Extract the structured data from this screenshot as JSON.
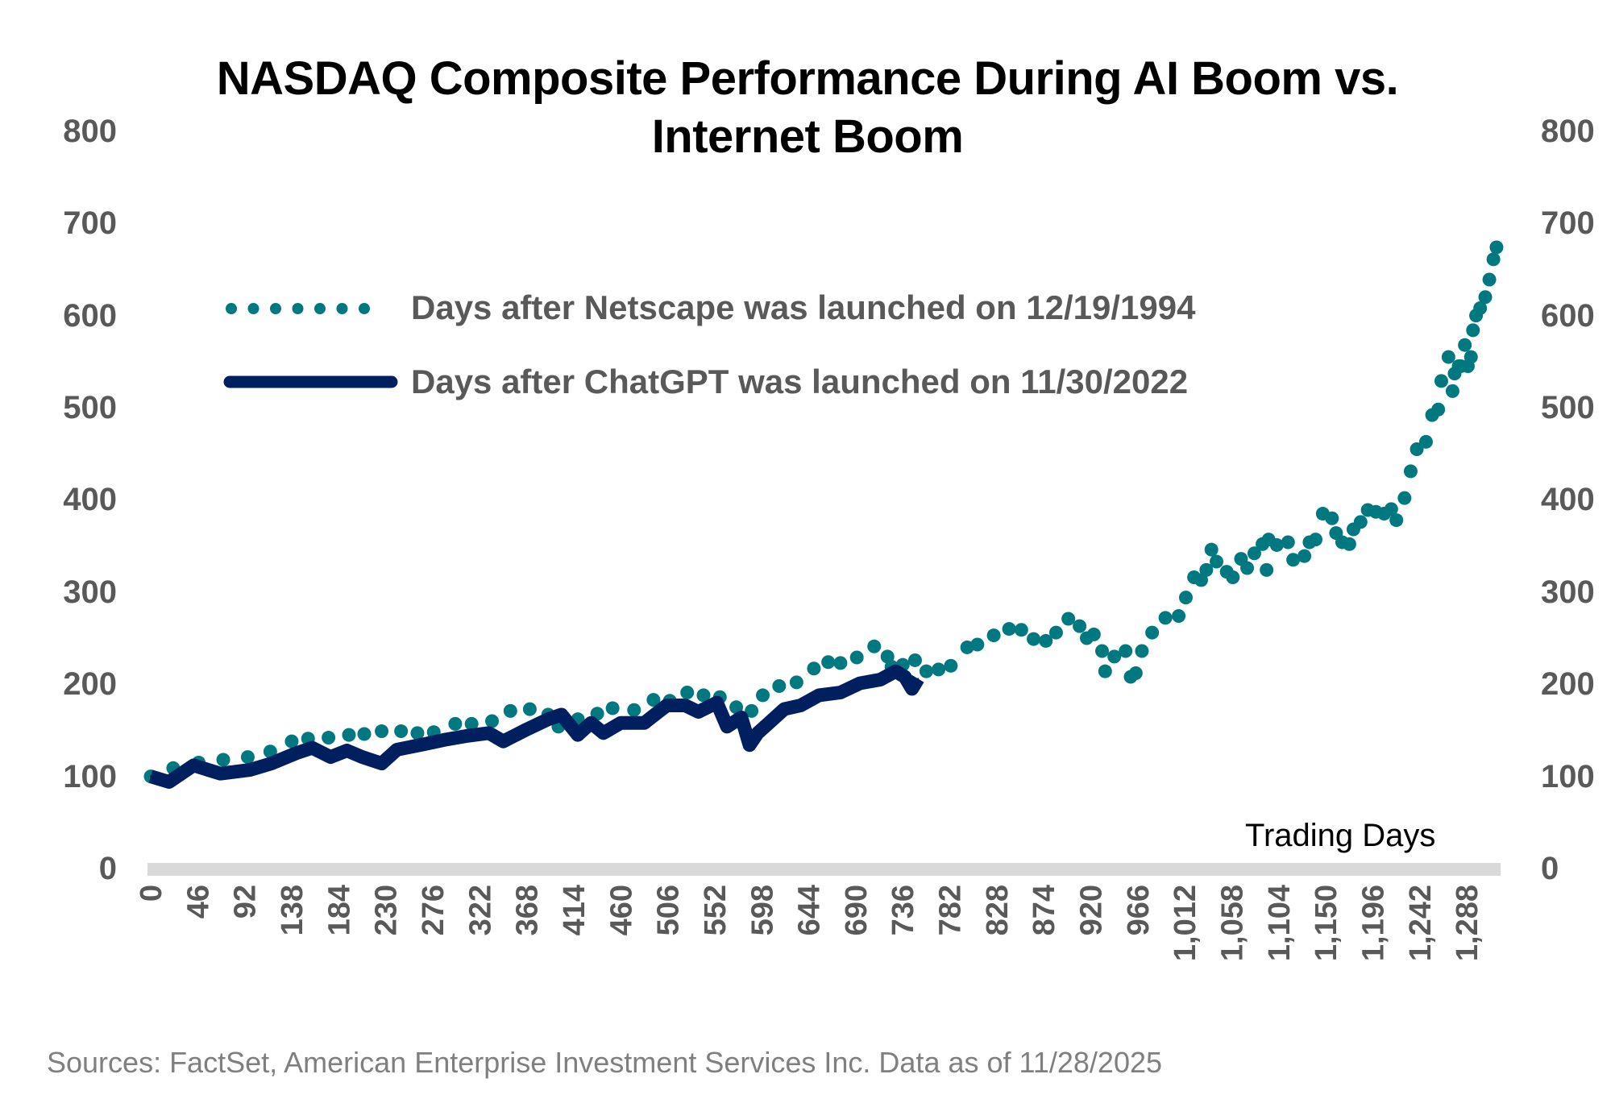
{
  "chart_data": {
    "type": "scatter",
    "title": "NASDAQ Composite Performance During AI Boom vs. Internet Boom",
    "title_lines": [
      "NASDAQ Composite Performance During AI Boom vs.",
      "Internet Boom"
    ],
    "xlabel": "Trading Days",
    "ylabel": "",
    "xlim": [
      0,
      1320
    ],
    "ylim": [
      0,
      800
    ],
    "y_ticks": [
      "0",
      "100",
      "200",
      "300",
      "400",
      "500",
      "600",
      "700",
      "800"
    ],
    "y_tick_values": [
      0,
      100,
      200,
      300,
      400,
      500,
      600,
      700,
      800
    ],
    "x_ticks": [
      "0",
      "46",
      "92",
      "138",
      "184",
      "230",
      "276",
      "322",
      "368",
      "414",
      "460",
      "506",
      "552",
      "598",
      "644",
      "690",
      "736",
      "782",
      "828",
      "874",
      "920",
      "966",
      "1,012",
      "1,058",
      "1,104",
      "1,150",
      "1,196",
      "1,242",
      "1,288"
    ],
    "x_tick_values": [
      0,
      46,
      92,
      138,
      184,
      230,
      276,
      322,
      368,
      414,
      460,
      506,
      552,
      598,
      644,
      690,
      736,
      782,
      828,
      874,
      920,
      966,
      1012,
      1058,
      1104,
      1150,
      1196,
      1242,
      1288
    ],
    "grid": false,
    "legend_position": "top-left",
    "series": [
      {
        "name": "Days after Netscape was launched on 12/19/1994",
        "style": "dots",
        "color": "#00787f",
        "x": [
          0,
          22,
          47,
          71,
          95,
          117,
          138,
          154,
          174,
          194,
          209,
          226,
          245,
          261,
          277,
          298,
          314,
          334,
          352,
          371,
          389,
          399,
          418,
          437,
          452,
          473,
          492,
          508,
          525,
          541,
          557,
          573,
          588,
          599,
          615,
          632,
          649,
          663,
          675,
          691,
          708,
          721,
          725,
          736,
          748,
          759,
          771,
          783,
          799,
          809,
          825,
          840,
          852,
          864,
          876,
          886,
          898,
          909,
          916,
          923,
          931,
          934,
          943,
          954,
          959,
          964,
          970,
          980,
          993,
          1006,
          1013,
          1021,
          1028,
          1033,
          1038,
          1043,
          1053,
          1059,
          1067,
          1073,
          1080,
          1088,
          1092,
          1094,
          1102,
          1113,
          1118,
          1129,
          1134,
          1140,
          1147,
          1156,
          1160,
          1166,
          1173,
          1177,
          1184,
          1191,
          1199,
          1207,
          1214,
          1219,
          1227,
          1233,
          1239,
          1248,
          1254,
          1260,
          1263,
          1270,
          1274,
          1276,
          1280,
          1282,
          1286,
          1289,
          1292,
          1294,
          1297,
          1301,
          1306,
          1310,
          1314,
          1317
        ],
        "y": [
          100,
          109,
          115,
          118,
          121,
          127,
          138,
          141,
          142,
          145,
          146,
          149,
          149,
          147,
          148,
          157,
          157,
          160,
          171,
          173,
          167,
          154,
          162,
          168,
          174,
          172,
          183,
          182,
          191,
          188,
          186,
          175,
          171,
          188,
          198,
          202,
          217,
          224,
          223,
          229,
          241,
          230,
          219,
          221,
          226,
          214,
          216,
          220,
          240,
          243,
          253,
          260,
          259,
          249,
          247,
          256,
          271,
          263,
          250,
          254,
          236,
          214,
          230,
          236,
          208,
          212,
          236,
          256,
          272,
          274,
          294,
          316,
          313,
          324,
          346,
          333,
          322,
          316,
          336,
          326,
          342,
          352,
          324,
          357,
          351,
          354,
          335,
          339,
          354,
          357,
          385,
          380,
          364,
          354,
          352,
          368,
          376,
          389,
          387,
          385,
          390,
          378,
          402,
          431,
          455,
          463,
          492,
          498,
          529,
          555,
          518,
          537,
          545,
          545,
          568,
          545,
          555,
          584,
          600,
          608,
          620,
          639,
          661,
          674
        ]
      },
      {
        "name": "Days after ChatGPT was launched on 11/30/2022",
        "style": "line",
        "color": "#001f5f",
        "x": [
          0,
          18,
          42,
          68,
          97,
          118,
          142,
          158,
          176,
          192,
          207,
          226,
          241,
          268,
          289,
          310,
          331,
          345,
          368,
          389,
          402,
          418,
          431,
          443,
          460,
          483,
          505,
          523,
          536,
          554,
          564,
          578,
          586,
          594,
          604,
          620,
          636,
          654,
          675,
          694,
          714,
          729,
          738,
          745,
          751
        ],
        "y": [
          100,
          94,
          112,
          103,
          107,
          114,
          125,
          131,
          121,
          128,
          121,
          114,
          129,
          135,
          140,
          144,
          147,
          138,
          151,
          162,
          167,
          145,
          158,
          147,
          158,
          158,
          177,
          177,
          170,
          180,
          154,
          164,
          134,
          147,
          157,
          173,
          177,
          188,
          191,
          201,
          205,
          214,
          208,
          195,
          206
        ]
      }
    ],
    "source_note": "Sources: FactSet, American Enterprise Investment Services Inc.  Data as of 11/28/2025"
  },
  "colors": {
    "netscape": "#00787f",
    "chatgpt": "#001f5f",
    "axis": "#d9d9d9",
    "tick_text": "#595959",
    "footer_text": "#7f7f7f"
  }
}
